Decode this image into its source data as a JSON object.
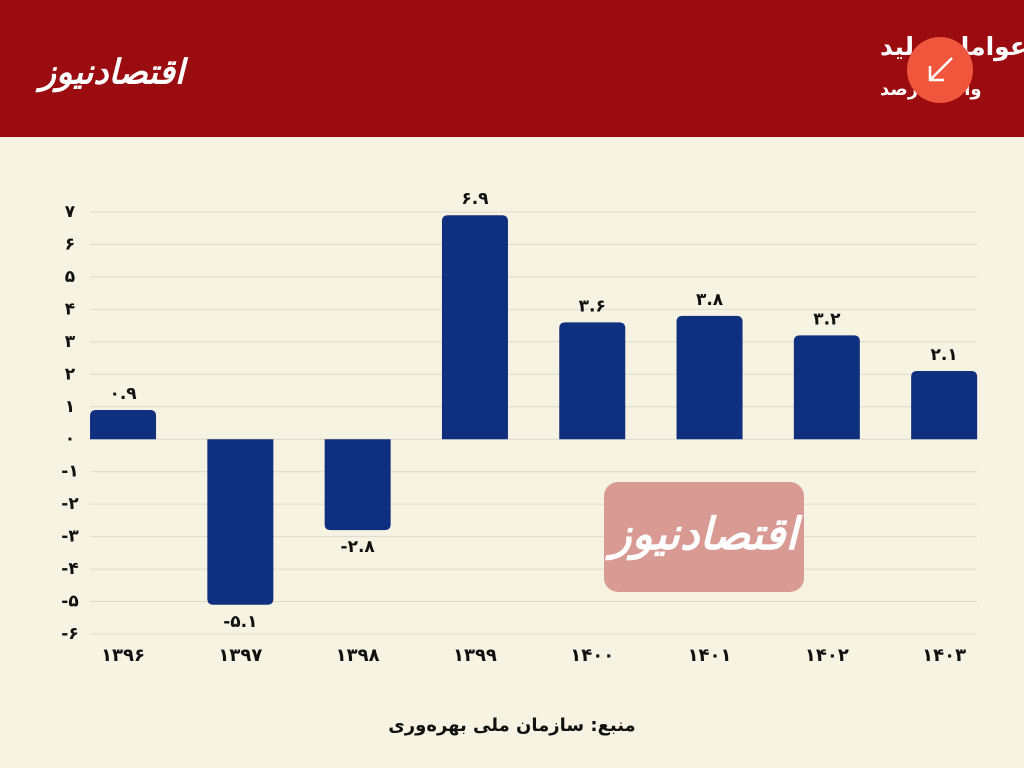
{
  "brand": "اقتصادنیوز",
  "chart_data": {
    "type": "bar",
    "title": "رشد بهره‌وری کل عوامل تولید",
    "subtitle": "واحد: درصد",
    "source": "منبع: سازمان ملی بهره‌وری",
    "categories": [
      "۱۳۹۶",
      "۱۳۹۷",
      "۱۳۹۸",
      "۱۳۹۹",
      "۱۴۰۰",
      "۱۴۰۱",
      "۱۴۰۲",
      "۱۴۰۳"
    ],
    "values": [
      0.9,
      -5.1,
      -2.8,
      6.9,
      3.6,
      3.8,
      3.2,
      2.1
    ],
    "value_labels": [
      "۰.۹",
      "-۵.۱",
      "-۲.۸",
      "۶.۹",
      "۳.۶",
      "۳.۸",
      "۳.۲",
      "۲.۱"
    ],
    "color": "#0f2f7f",
    "ylim": [
      -6,
      7
    ],
    "yticks": [
      {
        "value": 7,
        "label": "۷"
      },
      {
        "value": 6,
        "label": "۶"
      },
      {
        "value": 5,
        "label": "۵"
      },
      {
        "value": 4,
        "label": "۴"
      },
      {
        "value": 3,
        "label": "۳"
      },
      {
        "value": 2,
        "label": "۲"
      },
      {
        "value": 1,
        "label": "۱"
      },
      {
        "value": 0,
        "label": "۰"
      },
      {
        "value": -1,
        "label": "-۱"
      },
      {
        "value": -2,
        "label": "-۲"
      },
      {
        "value": -3,
        "label": "-۳"
      },
      {
        "value": -4,
        "label": "-۴"
      },
      {
        "value": -5,
        "label": "-۵"
      },
      {
        "value": -6,
        "label": "-۶"
      }
    ],
    "grid": true
  }
}
